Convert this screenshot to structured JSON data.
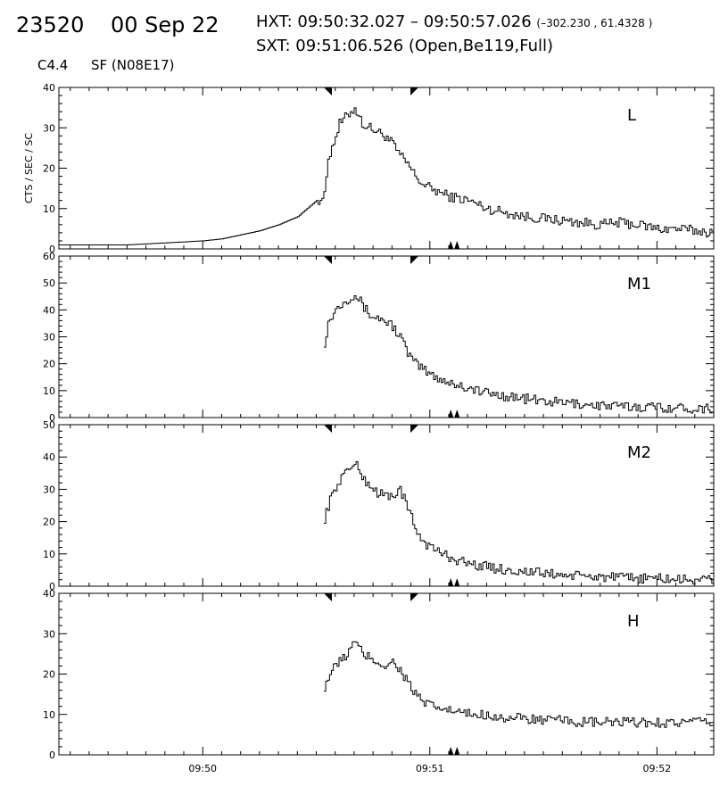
{
  "header": {
    "event_id": "23520",
    "date": "00 Sep 22",
    "hxt_label": "HXT:",
    "hxt_range": "09:50:32.027 – 09:50:57.026",
    "coords": "(–302.230 , 61.4328 )",
    "sxt_label": "SXT:",
    "sxt_info": "09:51:06.526 (Open,Be119,Full)",
    "goes_class": "C4.4",
    "flare_location": "SF (N08E17)"
  },
  "chart_data": [
    {
      "type": "line",
      "channel": "L",
      "ylabel": "CTS / SEC / SC",
      "ylim": [
        0,
        40
      ],
      "yticks": [
        0,
        10,
        20,
        30,
        40
      ],
      "xlim": [
        "09:49:22",
        "09:52:15"
      ],
      "xticks": [
        "09:50",
        "09:51",
        "09:52"
      ],
      "x": [
        "09:49:22",
        "09:49:30",
        "09:49:40",
        "09:49:50",
        "09:50:00",
        "09:50:05",
        "09:50:10",
        "09:50:15",
        "09:50:20",
        "09:50:25",
        "09:50:30",
        "09:50:32",
        "09:50:33",
        "09:50:34",
        "09:50:35",
        "09:50:36",
        "09:50:38",
        "09:50:40",
        "09:50:42",
        "09:50:44",
        "09:50:46",
        "09:50:48",
        "09:50:50",
        "09:50:52",
        "09:50:54",
        "09:50:56",
        "09:50:58",
        "09:51:00",
        "09:51:05",
        "09:51:10",
        "09:51:15",
        "09:51:20",
        "09:51:25",
        "09:51:30",
        "09:51:35",
        "09:51:40",
        "09:51:45",
        "09:51:50",
        "09:51:55",
        "09:52:00",
        "09:52:05",
        "09:52:10",
        "09:52:15"
      ],
      "values": [
        1,
        1,
        1,
        1.5,
        2,
        2.5,
        3.5,
        4.5,
        6,
        8,
        12,
        13,
        23,
        25,
        28,
        31,
        33,
        35,
        31,
        30,
        29,
        28,
        26,
        23,
        21,
        18,
        16,
        15,
        13,
        12,
        10,
        9,
        8,
        7.5,
        7,
        6.5,
        6,
        6.5,
        6,
        5,
        5,
        4.5,
        4
      ]
    },
    {
      "type": "line",
      "channel": "M1",
      "ylim": [
        0,
        60
      ],
      "yticks": [
        0,
        10,
        20,
        30,
        40,
        50,
        60
      ],
      "xlim": [
        "09:49:22",
        "09:52:15"
      ],
      "xticks": [
        "09:50",
        "09:51",
        "09:52"
      ],
      "x": [
        "09:50:32",
        "09:50:33",
        "09:50:34",
        "09:50:36",
        "09:50:38",
        "09:50:40",
        "09:50:42",
        "09:50:44",
        "09:50:46",
        "09:50:48",
        "09:50:50",
        "09:50:52",
        "09:50:54",
        "09:50:56",
        "09:50:58",
        "09:51:00",
        "09:51:05",
        "09:51:10",
        "09:51:15",
        "09:51:20",
        "09:51:25",
        "09:51:30",
        "09:51:35",
        "09:51:40",
        "09:51:45",
        "09:51:50",
        "09:51:55",
        "09:52:00",
        "09:52:05",
        "09:52:10",
        "09:52:15"
      ],
      "values": [
        28,
        35,
        38,
        42,
        44,
        46,
        42,
        38,
        37,
        36,
        34,
        30,
        24,
        20,
        18,
        16,
        13,
        11,
        9,
        8,
        7,
        6,
        5.5,
        5,
        4.5,
        4,
        4,
        4,
        3.5,
        3.5,
        3.5
      ]
    },
    {
      "type": "line",
      "channel": "M2",
      "ylim": [
        0,
        50
      ],
      "yticks": [
        0,
        10,
        20,
        30,
        40,
        50
      ],
      "xlim": [
        "09:49:22",
        "09:52:15"
      ],
      "xticks": [
        "09:50",
        "09:51",
        "09:52"
      ],
      "x": [
        "09:50:32",
        "09:50:33",
        "09:50:34",
        "09:50:36",
        "09:50:38",
        "09:50:40",
        "09:50:42",
        "09:50:44",
        "09:50:46",
        "09:50:48",
        "09:50:50",
        "09:50:52",
        "09:50:54",
        "09:50:56",
        "09:50:58",
        "09:51:00",
        "09:51:05",
        "09:51:10",
        "09:51:15",
        "09:51:20",
        "09:51:25",
        "09:51:30",
        "09:51:35",
        "09:51:40",
        "09:51:45",
        "09:51:50",
        "09:51:55",
        "09:52:00",
        "09:52:05",
        "09:52:10",
        "09:52:15"
      ],
      "values": [
        21,
        25,
        28,
        33,
        36,
        38,
        34,
        31,
        29,
        28,
        28,
        30,
        24,
        18,
        14,
        12,
        9,
        7,
        6,
        5,
        4.5,
        4,
        3.5,
        3,
        3,
        2.5,
        2.5,
        2.5,
        2,
        2,
        2
      ]
    },
    {
      "type": "line",
      "channel": "H",
      "ylim": [
        0,
        40
      ],
      "yticks": [
        0,
        10,
        20,
        30,
        40
      ],
      "xlim": [
        "09:49:22",
        "09:52:15"
      ],
      "xticks": [
        "09:50",
        "09:51",
        "09:52"
      ],
      "x": [
        "09:50:32",
        "09:50:33",
        "09:50:34",
        "09:50:36",
        "09:50:38",
        "09:50:40",
        "09:50:42",
        "09:50:44",
        "09:50:46",
        "09:50:48",
        "09:50:50",
        "09:50:52",
        "09:50:54",
        "09:50:56",
        "09:50:58",
        "09:51:00",
        "09:51:05",
        "09:51:10",
        "09:51:15",
        "09:51:20",
        "09:51:25",
        "09:51:30",
        "09:51:35",
        "09:51:40",
        "09:51:45",
        "09:51:50",
        "09:51:55",
        "09:52:00",
        "09:52:05",
        "09:52:10",
        "09:52:15"
      ],
      "values": [
        17,
        19,
        21,
        23,
        25,
        28,
        25,
        24,
        23,
        22,
        23,
        21,
        18,
        15,
        13,
        12,
        11,
        10,
        10,
        9,
        9,
        8.5,
        8.5,
        8,
        8,
        8,
        8,
        8,
        8,
        8,
        8
      ]
    }
  ],
  "markers": {
    "hxt_start": "09:50:32",
    "hxt_end": "09:50:57",
    "sxt_time": "09:51:06"
  },
  "colors": {
    "line": "#000000",
    "background": "#ffffff"
  }
}
